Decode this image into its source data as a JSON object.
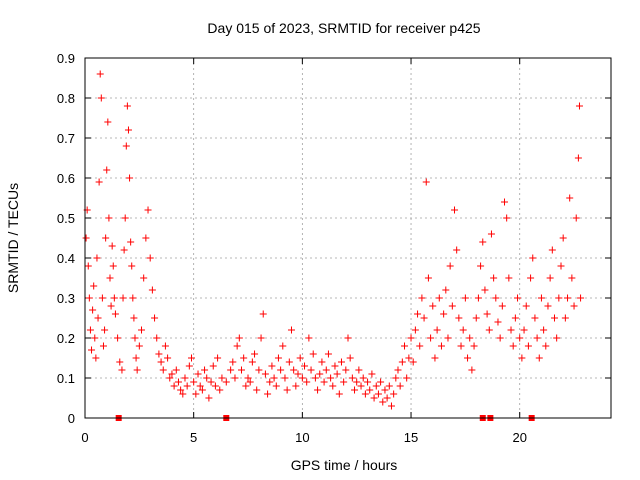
{
  "chart_data": {
    "type": "scatter",
    "title": "Day 015 of 2023, SRMTID for receiver p425",
    "xlabel": "GPS time / hours",
    "ylabel": "SRMTID / TECUs",
    "xlim": [
      0,
      24.2
    ],
    "ylim": [
      0,
      0.9
    ],
    "xticks": [
      0,
      5,
      10,
      15,
      20
    ],
    "xtick_labels": [
      "0",
      "5",
      "10",
      "15",
      "20"
    ],
    "yticks": [
      0,
      0.1,
      0.2,
      0.3,
      0.4,
      0.5,
      0.6,
      0.7,
      0.8,
      0.9
    ],
    "ytick_labels": [
      "0",
      "0.1",
      "0.2",
      "0.3",
      "0.4",
      "0.5",
      "0.6",
      "0.7",
      "0.8",
      "0.9"
    ],
    "grid": true,
    "series": [
      {
        "name": "SRMTID",
        "color": "#ff0000",
        "marker": "plus",
        "points": [
          [
            0.05,
            0.45
          ],
          [
            0.1,
            0.52
          ],
          [
            0.15,
            0.38
          ],
          [
            0.2,
            0.3
          ],
          [
            0.25,
            0.22
          ],
          [
            0.3,
            0.17
          ],
          [
            0.35,
            0.27
          ],
          [
            0.4,
            0.33
          ],
          [
            0.45,
            0.2
          ],
          [
            0.5,
            0.15
          ],
          [
            0.55,
            0.4
          ],
          [
            0.6,
            0.25
          ],
          [
            0.65,
            0.59
          ],
          [
            0.7,
            0.86
          ],
          [
            0.75,
            0.8
          ],
          [
            0.8,
            0.3
          ],
          [
            0.85,
            0.18
          ],
          [
            0.9,
            0.22
          ],
          [
            0.95,
            0.45
          ],
          [
            1.0,
            0.62
          ],
          [
            1.05,
            0.74
          ],
          [
            1.1,
            0.5
          ],
          [
            1.15,
            0.35
          ],
          [
            1.2,
            0.28
          ],
          [
            1.25,
            0.43
          ],
          [
            1.3,
            0.38
          ],
          [
            1.35,
            0.3
          ],
          [
            1.4,
            0.26
          ],
          [
            1.5,
            0.2
          ],
          [
            1.6,
            0.14
          ],
          [
            1.7,
            0.12
          ],
          [
            1.75,
            0.3
          ],
          [
            1.8,
            0.42
          ],
          [
            1.85,
            0.5
          ],
          [
            1.9,
            0.68
          ],
          [
            1.95,
            0.78
          ],
          [
            2.0,
            0.72
          ],
          [
            2.05,
            0.6
          ],
          [
            2.1,
            0.44
          ],
          [
            2.15,
            0.38
          ],
          [
            2.2,
            0.3
          ],
          [
            2.25,
            0.25
          ],
          [
            2.3,
            0.2
          ],
          [
            2.35,
            0.15
          ],
          [
            2.4,
            0.12
          ],
          [
            2.5,
            0.18
          ],
          [
            2.6,
            0.22
          ],
          [
            2.7,
            0.35
          ],
          [
            2.8,
            0.45
          ],
          [
            2.9,
            0.52
          ],
          [
            3.0,
            0.4
          ],
          [
            3.1,
            0.32
          ],
          [
            3.2,
            0.25
          ],
          [
            3.3,
            0.2
          ],
          [
            3.4,
            0.16
          ],
          [
            3.5,
            0.14
          ],
          [
            3.6,
            0.12
          ],
          [
            3.7,
            0.18
          ],
          [
            3.8,
            0.15
          ],
          [
            3.9,
            0.1
          ],
          [
            4.0,
            0.11
          ],
          [
            4.1,
            0.08
          ],
          [
            4.2,
            0.12
          ],
          [
            4.3,
            0.09
          ],
          [
            4.4,
            0.07
          ],
          [
            4.5,
            0.06
          ],
          [
            4.6,
            0.1
          ],
          [
            4.7,
            0.08
          ],
          [
            4.8,
            0.13
          ],
          [
            4.9,
            0.15
          ],
          [
            5.0,
            0.09
          ],
          [
            5.1,
            0.06
          ],
          [
            5.2,
            0.11
          ],
          [
            5.3,
            0.08
          ],
          [
            5.4,
            0.07
          ],
          [
            5.5,
            0.12
          ],
          [
            5.6,
            0.1
          ],
          [
            5.7,
            0.05
          ],
          [
            5.8,
            0.09
          ],
          [
            5.9,
            0.13
          ],
          [
            6.0,
            0.08
          ],
          [
            6.1,
            0.15
          ],
          [
            6.2,
            0.07
          ],
          [
            6.3,
            0.1
          ],
          [
            6.5,
            0.09
          ],
          [
            6.7,
            0.12
          ],
          [
            6.8,
            0.14
          ],
          [
            6.9,
            0.1
          ],
          [
            7.0,
            0.18
          ],
          [
            7.1,
            0.2
          ],
          [
            7.2,
            0.12
          ],
          [
            7.3,
            0.15
          ],
          [
            7.4,
            0.08
          ],
          [
            7.5,
            0.1
          ],
          [
            7.6,
            0.09
          ],
          [
            7.7,
            0.14
          ],
          [
            7.8,
            0.16
          ],
          [
            7.9,
            0.07
          ],
          [
            8.0,
            0.12
          ],
          [
            8.1,
            0.2
          ],
          [
            8.2,
            0.26
          ],
          [
            8.3,
            0.11
          ],
          [
            8.4,
            0.06
          ],
          [
            8.5,
            0.09
          ],
          [
            8.6,
            0.13
          ],
          [
            8.7,
            0.1
          ],
          [
            8.8,
            0.08
          ],
          [
            8.9,
            0.15
          ],
          [
            9.0,
            0.12
          ],
          [
            9.1,
            0.18
          ],
          [
            9.2,
            0.1
          ],
          [
            9.3,
            0.07
          ],
          [
            9.4,
            0.14
          ],
          [
            9.5,
            0.22
          ],
          [
            9.6,
            0.12
          ],
          [
            9.7,
            0.08
          ],
          [
            9.8,
            0.11
          ],
          [
            9.9,
            0.15
          ],
          [
            10.0,
            0.1
          ],
          [
            10.1,
            0.13
          ],
          [
            10.2,
            0.09
          ],
          [
            10.3,
            0.2
          ],
          [
            10.4,
            0.12
          ],
          [
            10.5,
            0.16
          ],
          [
            10.6,
            0.1
          ],
          [
            10.7,
            0.07
          ],
          [
            10.8,
            0.11
          ],
          [
            10.9,
            0.14
          ],
          [
            11.0,
            0.09
          ],
          [
            11.1,
            0.12
          ],
          [
            11.2,
            0.16
          ],
          [
            11.3,
            0.1
          ],
          [
            11.4,
            0.08
          ],
          [
            11.5,
            0.13
          ],
          [
            11.6,
            0.11
          ],
          [
            11.7,
            0.06
          ],
          [
            11.8,
            0.14
          ],
          [
            11.9,
            0.09
          ],
          [
            12.0,
            0.12
          ],
          [
            12.1,
            0.2
          ],
          [
            12.2,
            0.15
          ],
          [
            12.3,
            0.1
          ],
          [
            12.4,
            0.07
          ],
          [
            12.5,
            0.09
          ],
          [
            12.6,
            0.12
          ],
          [
            12.7,
            0.08
          ],
          [
            12.8,
            0.1
          ],
          [
            12.9,
            0.06
          ],
          [
            13.0,
            0.09
          ],
          [
            13.1,
            0.07
          ],
          [
            13.2,
            0.11
          ],
          [
            13.3,
            0.05
          ],
          [
            13.4,
            0.08
          ],
          [
            13.5,
            0.06
          ],
          [
            13.6,
            0.09
          ],
          [
            13.7,
            0.04
          ],
          [
            13.8,
            0.07
          ],
          [
            13.9,
            0.05
          ],
          [
            14.0,
            0.08
          ],
          [
            14.1,
            0.03
          ],
          [
            14.2,
            0.06
          ],
          [
            14.3,
            0.1
          ],
          [
            14.4,
            0.12
          ],
          [
            14.5,
            0.08
          ],
          [
            14.6,
            0.14
          ],
          [
            14.7,
            0.18
          ],
          [
            14.8,
            0.1
          ],
          [
            14.9,
            0.15
          ],
          [
            15.0,
            0.2
          ],
          [
            15.1,
            0.14
          ],
          [
            15.2,
            0.22
          ],
          [
            15.3,
            0.26
          ],
          [
            15.4,
            0.18
          ],
          [
            15.5,
            0.3
          ],
          [
            15.6,
            0.25
          ],
          [
            15.7,
            0.59
          ],
          [
            15.8,
            0.35
          ],
          [
            15.9,
            0.2
          ],
          [
            16.0,
            0.28
          ],
          [
            16.1,
            0.15
          ],
          [
            16.2,
            0.22
          ],
          [
            16.3,
            0.3
          ],
          [
            16.4,
            0.18
          ],
          [
            16.5,
            0.26
          ],
          [
            16.6,
            0.32
          ],
          [
            16.7,
            0.2
          ],
          [
            16.8,
            0.38
          ],
          [
            16.9,
            0.28
          ],
          [
            17.0,
            0.52
          ],
          [
            17.1,
            0.42
          ],
          [
            17.2,
            0.25
          ],
          [
            17.3,
            0.18
          ],
          [
            17.4,
            0.22
          ],
          [
            17.5,
            0.3
          ],
          [
            17.6,
            0.15
          ],
          [
            17.7,
            0.2
          ],
          [
            17.8,
            0.12
          ],
          [
            17.9,
            0.18
          ],
          [
            18.0,
            0.25
          ],
          [
            18.1,
            0.3
          ],
          [
            18.2,
            0.38
          ],
          [
            18.3,
            0.44
          ],
          [
            18.4,
            0.32
          ],
          [
            18.5,
            0.26
          ],
          [
            18.6,
            0.22
          ],
          [
            18.7,
            0.46
          ],
          [
            18.8,
            0.35
          ],
          [
            18.9,
            0.3
          ],
          [
            19.0,
            0.24
          ],
          [
            19.1,
            0.2
          ],
          [
            19.2,
            0.28
          ],
          [
            19.3,
            0.54
          ],
          [
            19.4,
            0.5
          ],
          [
            19.5,
            0.35
          ],
          [
            19.6,
            0.22
          ],
          [
            19.7,
            0.18
          ],
          [
            19.8,
            0.25
          ],
          [
            19.9,
            0.3
          ],
          [
            20.0,
            0.2
          ],
          [
            20.1,
            0.15
          ],
          [
            20.2,
            0.22
          ],
          [
            20.3,
            0.28
          ],
          [
            20.4,
            0.18
          ],
          [
            20.5,
            0.35
          ],
          [
            20.6,
            0.4
          ],
          [
            20.7,
            0.25
          ],
          [
            20.8,
            0.2
          ],
          [
            20.9,
            0.15
          ],
          [
            21.0,
            0.3
          ],
          [
            21.1,
            0.22
          ],
          [
            21.2,
            0.18
          ],
          [
            21.3,
            0.28
          ],
          [
            21.4,
            0.35
          ],
          [
            21.5,
            0.42
          ],
          [
            21.6,
            0.25
          ],
          [
            21.7,
            0.2
          ],
          [
            21.8,
            0.3
          ],
          [
            21.9,
            0.38
          ],
          [
            22.0,
            0.45
          ],
          [
            22.1,
            0.25
          ],
          [
            22.2,
            0.3
          ],
          [
            22.3,
            0.55
          ],
          [
            22.4,
            0.35
          ],
          [
            22.5,
            0.28
          ],
          [
            22.6,
            0.5
          ],
          [
            22.7,
            0.65
          ],
          [
            22.75,
            0.78
          ],
          [
            22.8,
            0.3
          ]
        ]
      }
    ],
    "gap_markers_x": [
      1.55,
      6.5,
      18.3,
      18.65,
      20.55
    ]
  }
}
